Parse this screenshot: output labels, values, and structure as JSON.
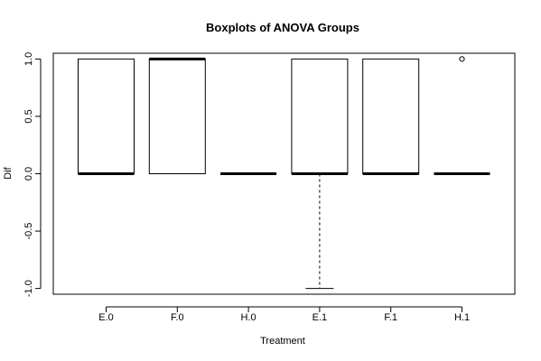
{
  "chart_data": {
    "type": "boxplot",
    "title": "Boxplots of ANOVA Groups",
    "xlabel": "Treatment",
    "ylabel": "Dif",
    "ylim": [
      -1.05,
      1.05
    ],
    "yticks": [
      -1.0,
      -0.5,
      0.0,
      0.5,
      1.0
    ],
    "ytick_labels": [
      "-1.0",
      "-0.5",
      "0.0",
      "0.5",
      "1.0"
    ],
    "grid": false,
    "legend": "none",
    "categories": [
      "E.0",
      "F.0",
      "H.0",
      "E.1",
      "F.1",
      "H.1"
    ],
    "boxes": [
      {
        "name": "E.0",
        "min": 0,
        "q1": 0,
        "median": 0,
        "q3": 1,
        "max": 1,
        "outliers": []
      },
      {
        "name": "F.0",
        "min": 0,
        "q1": 0,
        "median": 1,
        "q3": 1,
        "max": 1,
        "outliers": []
      },
      {
        "name": "H.0",
        "min": 0,
        "q1": 0,
        "median": 0,
        "q3": 0,
        "max": 0,
        "outliers": []
      },
      {
        "name": "E.1",
        "min": -1,
        "q1": 0,
        "median": 0,
        "q3": 1,
        "max": 1,
        "outliers": []
      },
      {
        "name": "F.1",
        "min": 0,
        "q1": 0,
        "median": 0,
        "q3": 1,
        "max": 1,
        "outliers": []
      },
      {
        "name": "H.1",
        "min": 0,
        "q1": 0,
        "median": 0,
        "q3": 0,
        "max": 0,
        "outliers": [
          1
        ]
      }
    ]
  }
}
